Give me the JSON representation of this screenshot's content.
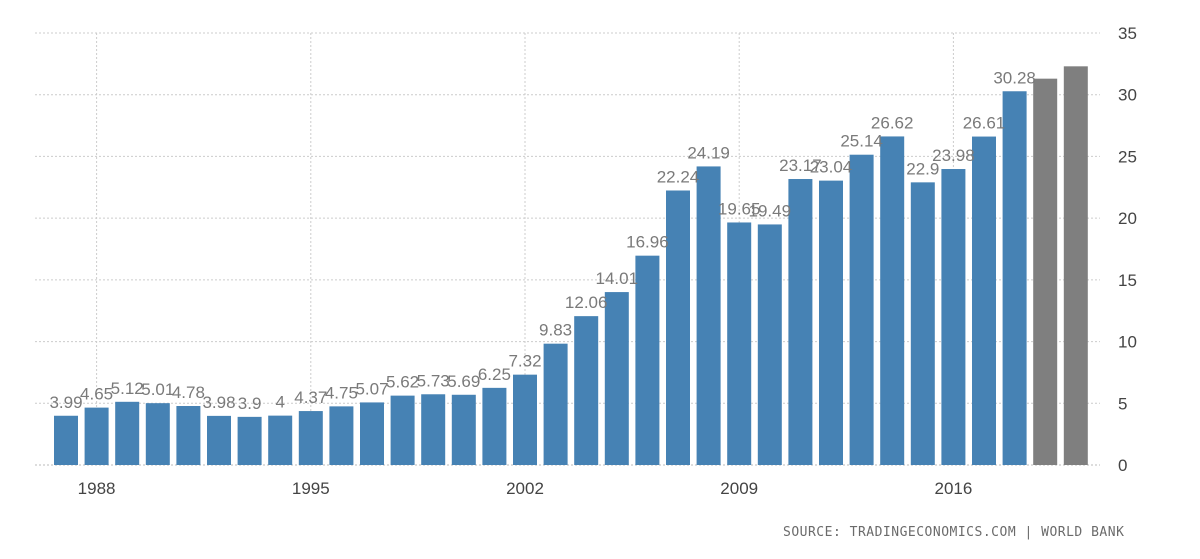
{
  "chart_data": {
    "type": "bar",
    "x": [
      1987,
      1988,
      1989,
      1990,
      1991,
      1992,
      1993,
      1994,
      1995,
      1996,
      1997,
      1998,
      1999,
      2000,
      2001,
      2002,
      2003,
      2004,
      2005,
      2006,
      2007,
      2008,
      2009,
      2010,
      2011,
      2012,
      2013,
      2014,
      2015,
      2016,
      2017,
      2018,
      2019,
      2020
    ],
    "values": [
      3.99,
      4.65,
      5.12,
      5.01,
      4.78,
      3.98,
      3.9,
      4,
      4.37,
      4.75,
      5.07,
      5.62,
      5.73,
      5.69,
      6.25,
      7.32,
      9.83,
      12.06,
      14.01,
      16.96,
      22.24,
      24.19,
      19.65,
      19.49,
      23.17,
      23.04,
      25.14,
      26.62,
      22.9,
      23.98,
      26.61,
      30.28,
      31.3,
      32.3
    ],
    "data_labels": [
      "3.99",
      "4.65",
      "5.12",
      "5.01",
      "4.78",
      "3.98",
      "3.9",
      "4",
      "4.37",
      "4.75",
      "5.07",
      "5.62",
      "5.73",
      "5.69",
      "6.25",
      "7.32",
      "9.83",
      "12.06",
      "14.01",
      "16.96",
      "22.24",
      "24.19",
      "19.65",
      "19.49",
      "23.17",
      "23.04",
      "25.14",
      "26.62",
      "22.9",
      "23.98",
      "26.61",
      "30.28",
      "",
      ""
    ],
    "forecast_from_index": 32,
    "x_ticks": [
      "1988",
      "1995",
      "2002",
      "2009",
      "2016"
    ],
    "y_ticks": [
      "0",
      "5",
      "10",
      "15",
      "20",
      "25",
      "30",
      "35"
    ],
    "ylim": [
      0,
      35
    ],
    "y_axis_side": "right",
    "grid": true,
    "colors": {
      "bar": "#4682b4",
      "forecast_bar": "#7f7f7f",
      "label": "#7a7a7a",
      "grid": "#cccccc",
      "axis_text": "#444444"
    },
    "title": "",
    "xlabel": "",
    "ylabel": ""
  },
  "footer": {
    "source": "SOURCE: TRADINGECONOMICS.COM | WORLD BANK"
  }
}
